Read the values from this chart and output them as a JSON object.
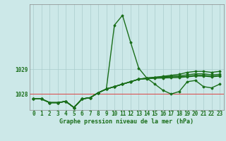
{
  "title": "Graphe pression niveau de la mer (hPa)",
  "bg_color": "#cce8e8",
  "grid_color": "#aacccc",
  "line_color": "#1a6e1a",
  "ref_line_color": "#dd4444",
  "ref_line_y": 1028.0,
  "yticks": [
    1028,
    1029
  ],
  "ylim": [
    1027.35,
    1031.65
  ],
  "xlim": [
    -0.5,
    23.5
  ],
  "xticks": [
    0,
    1,
    2,
    3,
    4,
    5,
    6,
    7,
    8,
    9,
    10,
    11,
    12,
    13,
    14,
    15,
    16,
    17,
    18,
    19,
    20,
    21,
    22,
    23
  ],
  "series": [
    [
      1027.8,
      1027.8,
      1027.65,
      1027.65,
      1027.7,
      1027.45,
      1027.8,
      1027.85,
      1028.05,
      1028.2,
      1030.8,
      1031.2,
      1030.1,
      1029.05,
      1028.65,
      1028.4,
      1028.15,
      1028.0,
      1028.1,
      1028.5,
      1028.55,
      1028.3,
      1028.25,
      1028.4
    ],
    [
      1027.8,
      1027.8,
      1027.65,
      1027.65,
      1027.7,
      1027.45,
      1027.8,
      1027.85,
      1028.05,
      1028.2,
      1028.3,
      1028.4,
      1028.5,
      1028.6,
      1028.65,
      1028.68,
      1028.72,
      1028.76,
      1028.8,
      1028.88,
      1028.92,
      1028.92,
      1028.88,
      1028.92
    ],
    [
      1027.8,
      1027.8,
      1027.65,
      1027.65,
      1027.7,
      1027.45,
      1027.8,
      1027.85,
      1028.05,
      1028.2,
      1028.3,
      1028.4,
      1028.5,
      1028.6,
      1028.65,
      1028.68,
      1028.7,
      1028.72,
      1028.74,
      1028.78,
      1028.82,
      1028.82,
      1028.78,
      1028.8
    ],
    [
      1027.8,
      1027.8,
      1027.65,
      1027.65,
      1027.7,
      1027.45,
      1027.8,
      1027.85,
      1028.05,
      1028.2,
      1028.3,
      1028.4,
      1028.5,
      1028.6,
      1028.63,
      1028.66,
      1028.68,
      1028.7,
      1028.7,
      1028.72,
      1028.76,
      1028.76,
      1028.72,
      1028.75
    ],
    [
      1027.8,
      1027.8,
      1027.65,
      1027.65,
      1027.7,
      1027.45,
      1027.8,
      1027.85,
      1028.05,
      1028.2,
      1028.3,
      1028.4,
      1028.5,
      1028.6,
      1028.62,
      1028.64,
      1028.65,
      1028.66,
      1028.67,
      1028.7,
      1028.73,
      1028.73,
      1028.7,
      1028.73
    ]
  ],
  "title_fontsize": 6.0,
  "tick_fontsize": 5.5
}
